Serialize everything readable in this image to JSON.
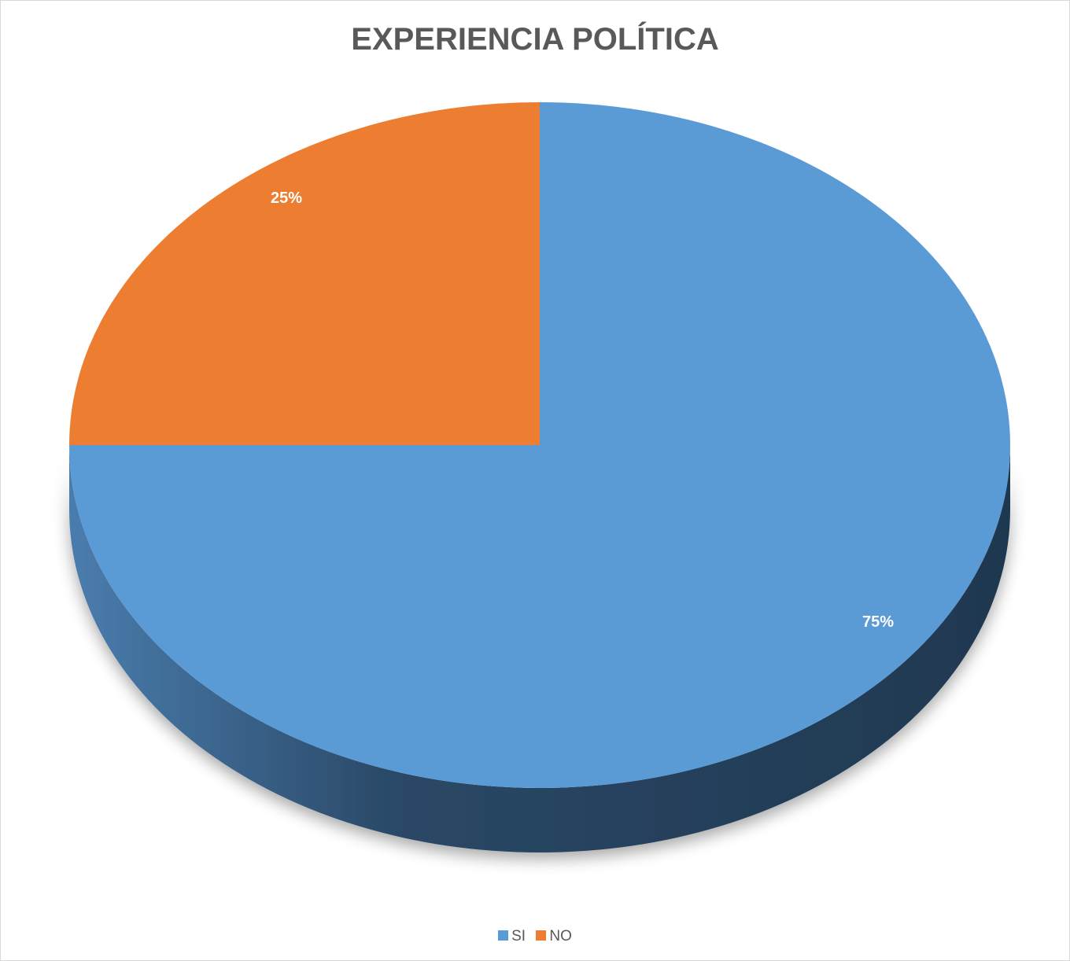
{
  "chart_data": {
    "type": "pie",
    "title": "EXPERIENCIA POLÍTICA",
    "categories": [
      "SI",
      "NO"
    ],
    "values": [
      75,
      25
    ],
    "labels": [
      "75%",
      "25%"
    ],
    "colors": [
      "#5B9BD5",
      "#ED7D31"
    ],
    "side_colors": [
      "#2E4F70",
      "#8A4A1E"
    ],
    "legend_position": "bottom",
    "style": "3d"
  }
}
